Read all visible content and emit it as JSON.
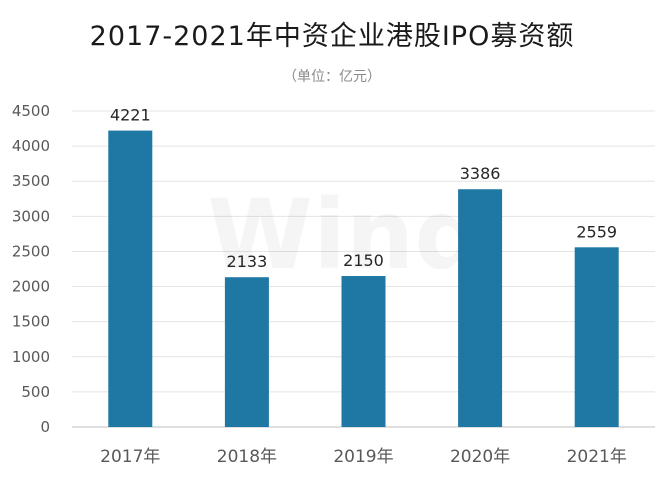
{
  "chart_data": {
    "type": "bar",
    "title": "2017-2021年中资企业港股IPO募资额",
    "subtitle": "（单位：亿元）",
    "categories": [
      "2017年",
      "2018年",
      "2019年",
      "2020年",
      "2021年"
    ],
    "values": [
      4221,
      2133,
      2150,
      3386,
      2559
    ],
    "ylim": [
      0,
      4500
    ],
    "yticks": [
      0,
      500,
      1000,
      1500,
      2000,
      2500,
      3000,
      3500,
      4000,
      4500
    ],
    "bar_color": "#1f77a4",
    "grid": true,
    "watermark": "Wind"
  }
}
